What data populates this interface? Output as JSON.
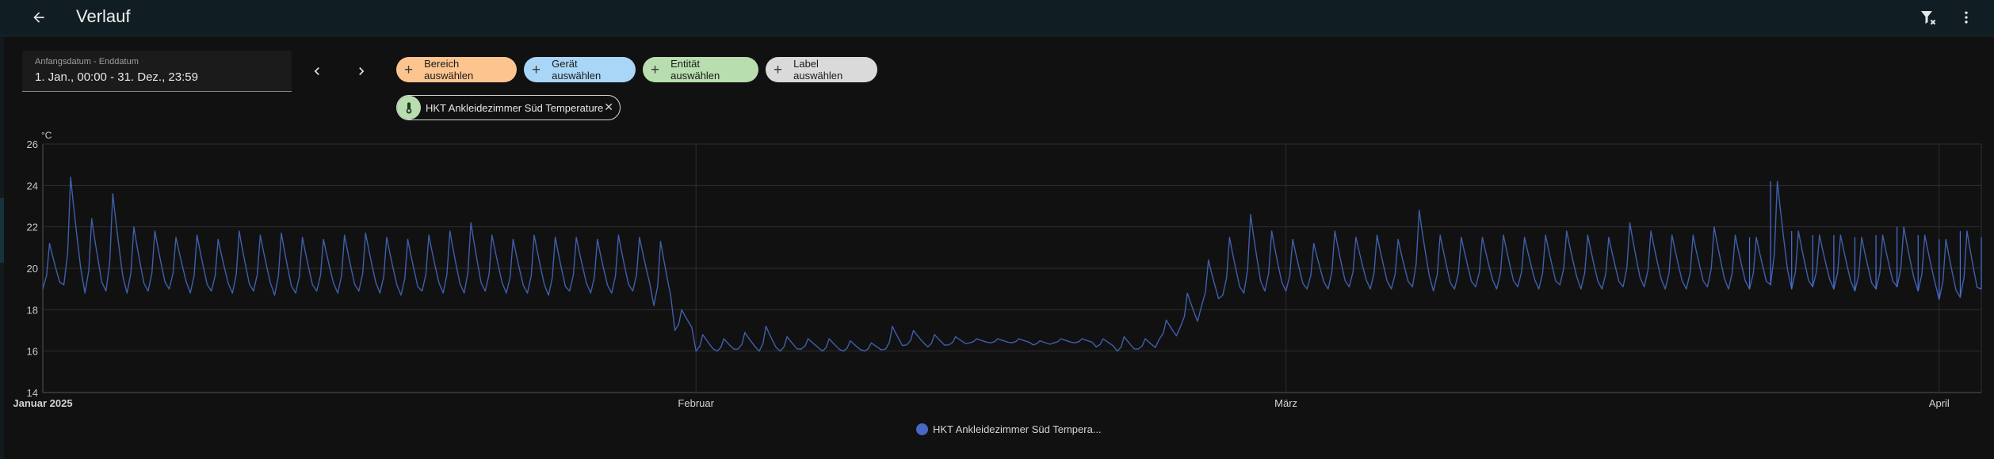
{
  "header": {
    "title": "Verlauf",
    "back_icon": "arrow-left-icon",
    "filter_clear_icon": "filter-remove-icon",
    "more_icon": "dots-vertical-icon"
  },
  "date_picker": {
    "label": "Anfangsdatum - Enddatum",
    "value": "1. Jan., 00:00 - 31. Dez., 23:59"
  },
  "nav": {
    "prev_icon": "chevron-left-icon",
    "next_icon": "chevron-right-icon"
  },
  "target_chips": [
    {
      "label": "Bereich auswählen",
      "color": "#fcc48f"
    },
    {
      "label": "Gerät auswählen",
      "color": "#a9d6f7"
    },
    {
      "label": "Entität auswählen",
      "color": "#b8deaf"
    },
    {
      "label": "Label auswählen",
      "color": "#dadada"
    }
  ],
  "selected_entity": {
    "label": "HKT Ankleidezimmer Süd Temperature",
    "icon": "thermometer-icon",
    "remove_icon": "close-icon"
  },
  "legend": {
    "label": "HKT Ankleidezimmer Süd Tempera...",
    "color": "#4868c8"
  },
  "colors": {
    "line": "#3f5fab",
    "line_bright": "#4a70d8",
    "grid": "#2e2e2e",
    "background": "#111111"
  },
  "chart_data": {
    "type": "line",
    "unit": "°C",
    "ylim": [
      14,
      26
    ],
    "yticks": [
      14,
      16,
      18,
      20,
      22,
      24,
      26
    ],
    "xlim": [
      "2025-01-01",
      "2025-04-03"
    ],
    "xticks": [
      {
        "label": "Januar 2025",
        "date": "2025-01-01"
      },
      {
        "label": "Februar",
        "date": "2025-02-01"
      },
      {
        "label": "März",
        "date": "2025-03-01"
      },
      {
        "label": "April",
        "date": "2025-04-01"
      }
    ],
    "grid": true,
    "legend_position": "bottom-center",
    "series": [
      {
        "name": "HKT Ankleidezimmer Süd Temperature",
        "x": [
          "2025-01-01",
          "2025-01-02",
          "2025-01-03",
          "2025-01-04",
          "2025-01-05",
          "2025-01-06",
          "2025-01-07",
          "2025-01-08",
          "2025-01-09",
          "2025-01-10",
          "2025-01-11",
          "2025-01-12",
          "2025-01-13",
          "2025-01-14",
          "2025-01-15",
          "2025-01-16",
          "2025-01-17",
          "2025-01-18",
          "2025-01-19",
          "2025-01-20",
          "2025-01-21",
          "2025-01-22",
          "2025-01-23",
          "2025-01-24",
          "2025-01-25",
          "2025-01-26",
          "2025-01-27",
          "2025-01-28",
          "2025-01-29",
          "2025-01-30",
          "2025-01-31",
          "2025-02-01",
          "2025-02-02",
          "2025-02-03",
          "2025-02-04",
          "2025-02-05",
          "2025-02-06",
          "2025-02-07",
          "2025-02-08",
          "2025-02-09",
          "2025-02-10",
          "2025-02-11",
          "2025-02-12",
          "2025-02-13",
          "2025-02-14",
          "2025-02-15",
          "2025-02-16",
          "2025-02-17",
          "2025-02-18",
          "2025-02-19",
          "2025-02-20",
          "2025-02-21",
          "2025-02-22",
          "2025-02-23",
          "2025-02-24",
          "2025-02-25",
          "2025-02-26",
          "2025-02-27",
          "2025-02-28",
          "2025-03-01",
          "2025-03-02",
          "2025-03-03",
          "2025-03-04",
          "2025-03-05",
          "2025-03-06",
          "2025-03-07",
          "2025-03-08",
          "2025-03-09",
          "2025-03-10",
          "2025-03-11",
          "2025-03-12",
          "2025-03-13",
          "2025-03-14",
          "2025-03-15",
          "2025-03-16",
          "2025-03-17",
          "2025-03-18",
          "2025-03-19",
          "2025-03-20",
          "2025-03-21",
          "2025-03-22",
          "2025-03-23",
          "2025-03-24",
          "2025-03-25",
          "2025-03-26",
          "2025-03-27",
          "2025-03-28",
          "2025-03-29",
          "2025-03-30",
          "2025-03-31",
          "2025-04-01",
          "2025-04-02",
          "2025-04-03"
        ],
        "max": [
          21.2,
          24.4,
          22.4,
          23.6,
          22.0,
          21.8,
          21.5,
          21.6,
          21.4,
          21.8,
          21.6,
          21.7,
          21.5,
          21.4,
          21.6,
          21.7,
          21.5,
          21.4,
          21.6,
          21.8,
          22.2,
          21.6,
          21.4,
          21.6,
          21.5,
          21.5,
          21.4,
          21.6,
          21.5,
          21.3,
          18.0,
          16.8,
          16.6,
          16.9,
          17.2,
          16.7,
          16.6,
          16.6,
          16.5,
          16.4,
          17.2,
          17.0,
          16.8,
          16.7,
          16.6,
          16.6,
          16.6,
          16.5,
          16.6,
          16.6,
          16.6,
          16.7,
          16.6,
          17.5,
          18.8,
          20.4,
          21.5,
          22.6,
          21.8,
          21.4,
          21.2,
          21.8,
          21.5,
          21.6,
          21.4,
          22.8,
          21.6,
          21.5,
          21.5,
          21.6,
          21.5,
          21.6,
          21.8,
          21.6,
          21.5,
          22.2,
          21.8,
          21.6,
          21.6,
          22.0,
          21.6,
          21.5,
          24.2,
          21.8,
          21.6,
          21.6,
          21.5,
          21.6,
          22.0,
          21.6,
          21.4,
          21.8,
          21.5
        ],
        "min": [
          19.0,
          19.2,
          18.8,
          18.9,
          18.8,
          18.9,
          19.0,
          18.8,
          18.9,
          18.8,
          18.9,
          18.7,
          18.8,
          18.9,
          18.8,
          18.9,
          18.8,
          18.7,
          18.9,
          18.8,
          18.8,
          18.9,
          18.8,
          18.8,
          18.7,
          18.9,
          18.8,
          18.8,
          18.9,
          18.2,
          17.0,
          16.0,
          16.0,
          16.1,
          16.0,
          16.0,
          16.1,
          16.0,
          16.0,
          16.0,
          16.1,
          16.3,
          16.2,
          16.3,
          16.4,
          16.4,
          16.4,
          16.3,
          16.4,
          16.4,
          16.2,
          16.0,
          16.1,
          16.6,
          17.2,
          18.2,
          18.7,
          18.8,
          18.9,
          18.9,
          19.0,
          19.0,
          19.1,
          19.0,
          19.0,
          19.1,
          18.9,
          19.0,
          19.1,
          19.0,
          19.1,
          19.0,
          19.2,
          19.0,
          19.0,
          19.1,
          19.1,
          19.0,
          19.0,
          19.1,
          19.0,
          19.0,
          19.2,
          19.0,
          19.1,
          19.0,
          18.9,
          19.0,
          19.1,
          18.9,
          18.5,
          18.6,
          19.0
        ]
      }
    ]
  }
}
